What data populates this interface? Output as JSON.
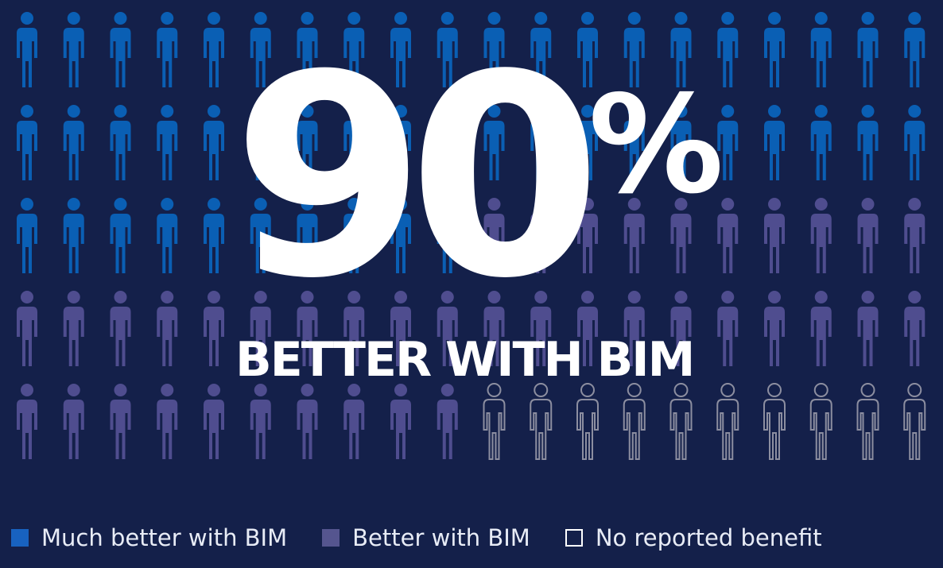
{
  "chart_data": {
    "type": "pictograph",
    "total": 100,
    "rows": 5,
    "columns": 20,
    "series": [
      {
        "name": "Much better with BIM",
        "count": 50,
        "color": "#0a5fb4",
        "style": "filled"
      },
      {
        "name": "Better with BIM",
        "count": 40,
        "color": "#4f4d8f",
        "style": "filled"
      },
      {
        "name": "No reported benefit",
        "count": 10,
        "color": "#8c8ea0",
        "style": "outline"
      }
    ],
    "headline": {
      "value": "90",
      "unit": "%",
      "label": "BETTER WITH BIM"
    },
    "legend_position": "bottom"
  },
  "legend": {
    "items": [
      {
        "label": "Much better with BIM",
        "swatch_icon": "filled-square-icon",
        "color": "#1862c0"
      },
      {
        "label": "Better with BIM",
        "swatch_icon": "filled-square-icon",
        "color": "#55558f"
      },
      {
        "label": "No reported benefit",
        "swatch_icon": "outline-square-icon",
        "color": "#ffffff"
      }
    ]
  },
  "colors": {
    "background": "#14204a",
    "text": "#ffffff"
  }
}
